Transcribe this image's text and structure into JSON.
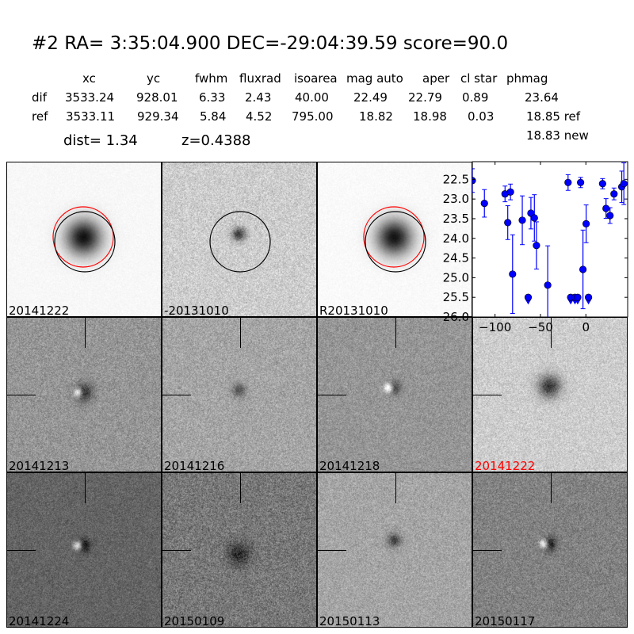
{
  "header": {
    "title": "#2   RA= 3:35:04.900 DEC=-29:04:39.59      score=90.0",
    "columns": [
      "xc",
      "yc",
      "fwhm",
      "fluxrad",
      "isoarea",
      "mag auto",
      "aper",
      "cl star",
      "phmag"
    ],
    "rows": [
      {
        "label": "dif",
        "values": [
          "3533.24",
          "928.01",
          "6.33",
          "2.43",
          "40.00",
          "22.49",
          "22.79",
          "0.89",
          "23.64"
        ]
      },
      {
        "label": "ref",
        "values": [
          "3533.11",
          "929.34",
          "5.84",
          "4.52",
          "795.00",
          "18.82",
          "18.98",
          "0.03",
          "18.85 ref"
        ]
      }
    ],
    "phmag_new": "18.83 new",
    "dist": "dist=  1.34",
    "z": "z=0.4388"
  },
  "stamps": [
    {
      "label": "20141222",
      "label_color": "#000000",
      "circles": [
        "red",
        "black"
      ]
    },
    {
      "label": "-20131010",
      "label_color": "#000000",
      "circles": [
        "black"
      ]
    },
    {
      "label": "R20131010",
      "label_color": "#000000",
      "circles": [
        "red",
        "black"
      ]
    },
    {
      "label": "20141213",
      "label_color": "#000000"
    },
    {
      "label": "20141216",
      "label_color": "#000000"
    },
    {
      "label": "20141218",
      "label_color": "#000000"
    },
    {
      "label": "20141222",
      "label_color": "#ff0000"
    },
    {
      "label": "20141224",
      "label_color": "#000000"
    },
    {
      "label": "20150109",
      "label_color": "#000000"
    },
    {
      "label": "20150113",
      "label_color": "#000000"
    },
    {
      "label": "20150117",
      "label_color": "#000000"
    }
  ],
  "chart_data": {
    "type": "scatter",
    "title": "",
    "xlabel": "",
    "ylabel": "",
    "xlim": [
      -125,
      46
    ],
    "ylim": [
      26.0,
      22.05
    ],
    "y_inverted": true,
    "xticks": [
      -100,
      -50,
      0
    ],
    "xtick_labels": [
      "−100",
      "−50",
      "0"
    ],
    "yticks": [
      22.5,
      23.0,
      23.5,
      24.0,
      24.5,
      25.0,
      25.5,
      26.0
    ],
    "ytick_labels": [
      "22.5",
      "23.0",
      "23.5",
      "24.0",
      "24.5",
      "25.0",
      "25.5",
      "26.0"
    ],
    "color": "#0000ff",
    "detections": [
      {
        "x": -125,
        "y": 22.53,
        "err": 0.3
      },
      {
        "x": -111.7,
        "y": 23.11,
        "err": 0.35
      },
      {
        "x": -89,
        "y": 22.87,
        "err": 0.2
      },
      {
        "x": -86,
        "y": 23.6,
        "err": 0.43
      },
      {
        "x": -83,
        "y": 22.82,
        "err": 0.2
      },
      {
        "x": -80.7,
        "y": 24.91,
        "err": 1.0
      },
      {
        "x": -70,
        "y": 23.54,
        "err": 0.62
      },
      {
        "x": -60.5,
        "y": 23.36,
        "err": 0.4
      },
      {
        "x": -56.7,
        "y": 23.48,
        "err": 0.59
      },
      {
        "x": -54.4,
        "y": 24.18,
        "err": 0.6
      },
      {
        "x": -42,
        "y": 25.19,
        "err": 1.0
      },
      {
        "x": -19.6,
        "y": 22.58,
        "err": 0.2
      },
      {
        "x": -5.8,
        "y": 22.58,
        "err": 0.13
      },
      {
        "x": -3.2,
        "y": 24.79,
        "err": 1.0
      },
      {
        "x": 0.3,
        "y": 23.63,
        "err": 0.48
      },
      {
        "x": 18.4,
        "y": 22.61,
        "err": 0.13
      },
      {
        "x": 22.2,
        "y": 23.24,
        "err": 0.25
      },
      {
        "x": 26.6,
        "y": 23.42,
        "err": 0.2
      },
      {
        "x": 31,
        "y": 22.87,
        "err": 0.15
      },
      {
        "x": 39.5,
        "y": 22.69,
        "err": 0.4
      },
      {
        "x": 41.8,
        "y": 22.61,
        "err": 0.53
      }
    ],
    "upper_limits": [
      {
        "x": -63.5,
        "y": 25.5
      },
      {
        "x": -16.7,
        "y": 25.5
      },
      {
        "x": -12,
        "y": 25.5
      },
      {
        "x": -9,
        "y": 25.5
      },
      {
        "x": 2.9,
        "y": 25.5
      }
    ]
  }
}
